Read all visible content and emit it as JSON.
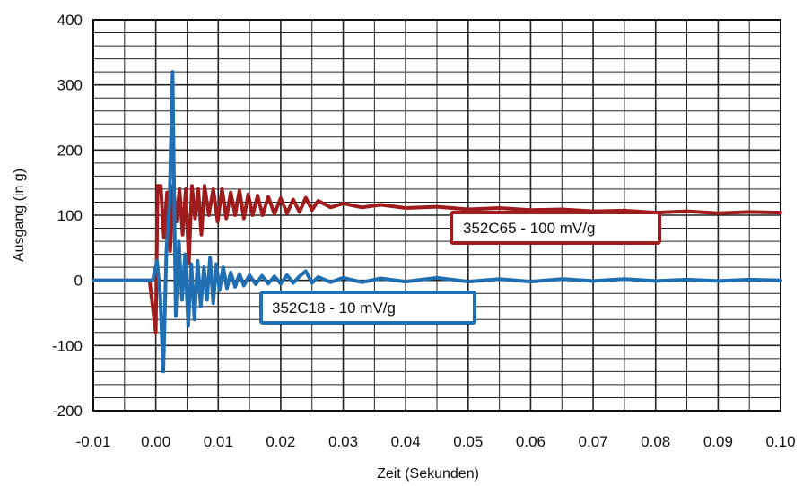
{
  "chart_data": {
    "type": "line",
    "xlabel": "Zeit (Sekunden)",
    "ylabel": "Ausgang (in g)",
    "xlim": [
      -0.01,
      0.1
    ],
    "ylim": [
      -200,
      400
    ],
    "x_ticks": [
      "-0.01",
      "0.00",
      "0.01",
      "0.02",
      "0.03",
      "0.04",
      "0.05",
      "0.06",
      "0.07",
      "0.08",
      "0.09",
      "0.10"
    ],
    "y_ticks": [
      "400",
      "300",
      "200",
      "100",
      "0",
      "-100",
      "-200"
    ],
    "grid": true,
    "series": [
      {
        "name": "352C65 - 100 mV/g",
        "color": "#a01c1c",
        "points": [
          [
            -0.01,
            0
          ],
          [
            -0.001,
            0
          ],
          [
            0.0,
            -80
          ],
          [
            0.0003,
            145
          ],
          [
            0.0008,
            145
          ],
          [
            0.0013,
            65
          ],
          [
            0.0018,
            135
          ],
          [
            0.0023,
            45
          ],
          [
            0.0028,
            145
          ],
          [
            0.0033,
            90
          ],
          [
            0.0038,
            140
          ],
          [
            0.0043,
            70
          ],
          [
            0.0048,
            140
          ],
          [
            0.0053,
            25
          ],
          [
            0.0058,
            145
          ],
          [
            0.0063,
            95
          ],
          [
            0.0068,
            140
          ],
          [
            0.0073,
            70
          ],
          [
            0.0078,
            145
          ],
          [
            0.0085,
            100
          ],
          [
            0.0092,
            140
          ],
          [
            0.0099,
            90
          ],
          [
            0.0106,
            140
          ],
          [
            0.0113,
            95
          ],
          [
            0.012,
            135
          ],
          [
            0.0127,
            100
          ],
          [
            0.0134,
            138
          ],
          [
            0.0141,
            95
          ],
          [
            0.0148,
            132
          ],
          [
            0.0155,
            100
          ],
          [
            0.0163,
            130
          ],
          [
            0.0171,
            100
          ],
          [
            0.018,
            128
          ],
          [
            0.019,
            102
          ],
          [
            0.02,
            126
          ],
          [
            0.021,
            103
          ],
          [
            0.022,
            124
          ],
          [
            0.023,
            105
          ],
          [
            0.024,
            127
          ],
          [
            0.025,
            108
          ],
          [
            0.026,
            122
          ],
          [
            0.028,
            112
          ],
          [
            0.03,
            118
          ],
          [
            0.033,
            112
          ],
          [
            0.036,
            116
          ],
          [
            0.04,
            111
          ],
          [
            0.045,
            113
          ],
          [
            0.05,
            109
          ],
          [
            0.055,
            111
          ],
          [
            0.06,
            108
          ],
          [
            0.065,
            109
          ],
          [
            0.07,
            106
          ],
          [
            0.075,
            107
          ],
          [
            0.08,
            104
          ],
          [
            0.085,
            106
          ],
          [
            0.09,
            103
          ],
          [
            0.095,
            105
          ],
          [
            0.1,
            104
          ]
        ],
        "label": "352C65 - 100 mV/g"
      },
      {
        "name": "352C18 - 10 mV/g",
        "color": "#1f6fb2",
        "points": [
          [
            -0.01,
            0
          ],
          [
            -0.0005,
            0
          ],
          [
            0.0002,
            30
          ],
          [
            0.0007,
            -20
          ],
          [
            0.0012,
            -140
          ],
          [
            0.0017,
            45
          ],
          [
            0.0022,
            120
          ],
          [
            0.0027,
            320
          ],
          [
            0.0032,
            -55
          ],
          [
            0.0037,
            60
          ],
          [
            0.0042,
            -30
          ],
          [
            0.0047,
            40
          ],
          [
            0.0052,
            -70
          ],
          [
            0.0057,
            25
          ],
          [
            0.0062,
            -60
          ],
          [
            0.0067,
            30
          ],
          [
            0.0072,
            -40
          ],
          [
            0.0077,
            20
          ],
          [
            0.0082,
            -30
          ],
          [
            0.0087,
            35
          ],
          [
            0.0092,
            -35
          ],
          [
            0.0097,
            25
          ],
          [
            0.0102,
            -15
          ],
          [
            0.0108,
            20
          ],
          [
            0.0114,
            -12
          ],
          [
            0.012,
            12
          ],
          [
            0.0127,
            -10
          ],
          [
            0.0134,
            10
          ],
          [
            0.0141,
            -8
          ],
          [
            0.015,
            8
          ],
          [
            0.016,
            -6
          ],
          [
            0.017,
            7
          ],
          [
            0.018,
            -5
          ],
          [
            0.019,
            6
          ],
          [
            0.02,
            -5
          ],
          [
            0.021,
            8
          ],
          [
            0.022,
            -4
          ],
          [
            0.023,
            6
          ],
          [
            0.024,
            14
          ],
          [
            0.025,
            -4
          ],
          [
            0.026,
            5
          ],
          [
            0.028,
            -3
          ],
          [
            0.03,
            4
          ],
          [
            0.033,
            -3
          ],
          [
            0.036,
            3
          ],
          [
            0.04,
            -2
          ],
          [
            0.045,
            4
          ],
          [
            0.05,
            -2
          ],
          [
            0.055,
            2
          ],
          [
            0.06,
            -2
          ],
          [
            0.065,
            2
          ],
          [
            0.07,
            -1
          ],
          [
            0.075,
            2
          ],
          [
            0.08,
            -1
          ],
          [
            0.085,
            1
          ],
          [
            0.09,
            -1
          ],
          [
            0.095,
            1
          ],
          [
            0.1,
            0
          ]
        ],
        "label": "352C18 - 10 mV/g"
      }
    ]
  }
}
